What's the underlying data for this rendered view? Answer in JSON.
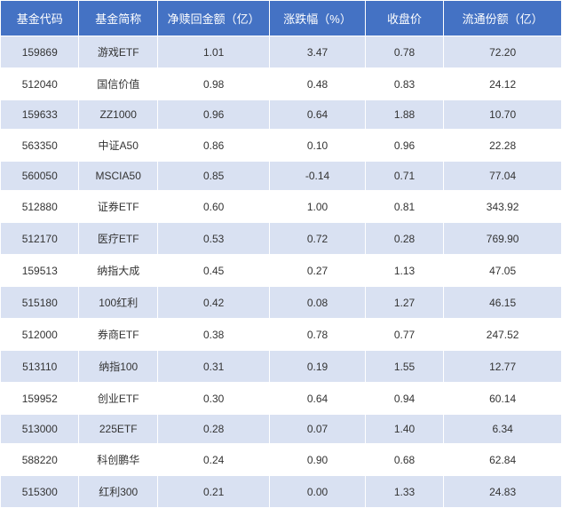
{
  "fund_table": {
    "type": "table",
    "header_bg": "#4472c4",
    "header_color": "#ffffff",
    "row_odd_bg": "#d9e1f2",
    "row_even_bg": "#ffffff",
    "text_color": "#333333",
    "font_size_header": 13,
    "font_size_cell": 12,
    "columns": [
      {
        "label": "基金代码",
        "width": "14%"
      },
      {
        "label": "基金简称",
        "width": "14%"
      },
      {
        "label": "净赎回金额（亿）",
        "width": "20%"
      },
      {
        "label": "涨跌幅（%）",
        "width": "17%"
      },
      {
        "label": "收盘价",
        "width": "14%"
      },
      {
        "label": "流通份额（亿）",
        "width": "21%"
      }
    ],
    "rows": [
      {
        "code": "159869",
        "name": "游戏ETF",
        "redemption": "1.01",
        "change": "3.47",
        "close": "0.78",
        "shares": "72.20"
      },
      {
        "code": "512040",
        "name": "国信价值",
        "redemption": "0.98",
        "change": "0.48",
        "close": "0.83",
        "shares": "24.12"
      },
      {
        "code": "159633",
        "name": "ZZ1000",
        "redemption": "0.96",
        "change": "0.64",
        "close": "1.88",
        "shares": "10.70"
      },
      {
        "code": "563350",
        "name": "中证A50",
        "redemption": "0.86",
        "change": "0.10",
        "close": "0.96",
        "shares": "22.28"
      },
      {
        "code": "560050",
        "name": "MSCIA50",
        "redemption": "0.85",
        "change": "-0.14",
        "close": "0.71",
        "shares": "77.04"
      },
      {
        "code": "512880",
        "name": "证券ETF",
        "redemption": "0.60",
        "change": "1.00",
        "close": "0.81",
        "shares": "343.92"
      },
      {
        "code": "512170",
        "name": "医疗ETF",
        "redemption": "0.53",
        "change": "0.72",
        "close": "0.28",
        "shares": "769.90"
      },
      {
        "code": "159513",
        "name": "纳指大成",
        "redemption": "0.45",
        "change": "0.27",
        "close": "1.13",
        "shares": "47.05"
      },
      {
        "code": "515180",
        "name": "100红利",
        "redemption": "0.42",
        "change": "0.08",
        "close": "1.27",
        "shares": "46.15"
      },
      {
        "code": "512000",
        "name": "券商ETF",
        "redemption": "0.38",
        "change": "0.78",
        "close": "0.77",
        "shares": "247.52"
      },
      {
        "code": "513110",
        "name": "纳指100",
        "redemption": "0.31",
        "change": "0.19",
        "close": "1.55",
        "shares": "12.77"
      },
      {
        "code": "159952",
        "name": "创业ETF",
        "redemption": "0.30",
        "change": "0.64",
        "close": "0.94",
        "shares": "60.14"
      },
      {
        "code": "513000",
        "name": "225ETF",
        "redemption": "0.28",
        "change": "0.07",
        "close": "1.40",
        "shares": "6.34"
      },
      {
        "code": "588220",
        "name": "科创鹏华",
        "redemption": "0.24",
        "change": "0.90",
        "close": "0.68",
        "shares": "62.84"
      },
      {
        "code": "515300",
        "name": "红利300",
        "redemption": "0.21",
        "change": "0.00",
        "close": "1.33",
        "shares": "24.83"
      }
    ]
  }
}
